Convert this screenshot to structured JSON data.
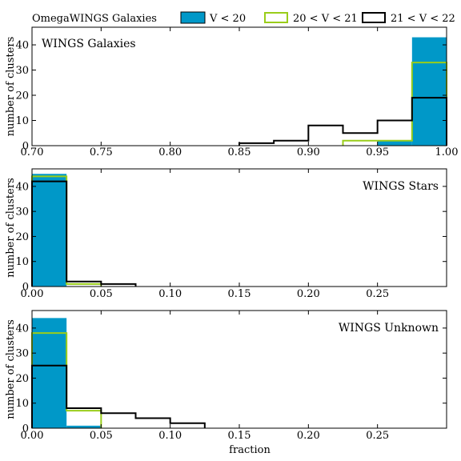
{
  "figure_title": "OmegaWINGS Galaxies",
  "legend": {
    "placement": "top",
    "entries": [
      {
        "label": "V < 20",
        "color": "#0098c8",
        "style": "filled"
      },
      {
        "label": "20 < V < 21",
        "color": "#9acd1a",
        "style": "step"
      },
      {
        "label": "21 < V < 22",
        "color": "#000000",
        "style": "step"
      }
    ]
  },
  "chart_data": [
    {
      "type": "bar",
      "panel_label": "WINGS Galaxies",
      "xlabel": "",
      "ylabel": "number of clusters",
      "xlim": [
        0.7,
        1.0
      ],
      "ylim": [
        0,
        47
      ],
      "xticks": [
        "0.70",
        "0.75",
        "0.80",
        "0.85",
        "0.90",
        "0.95",
        "1.00"
      ],
      "xtick_values": [
        0.7,
        0.75,
        0.8,
        0.85,
        0.9,
        0.95,
        1.0
      ],
      "yticks": [
        0,
        10,
        20,
        30,
        40
      ],
      "series": [
        {
          "name": "V < 20",
          "bins": [
            [
              0.95,
              0.975,
              2
            ],
            [
              0.975,
              1.0,
              43
            ]
          ]
        },
        {
          "name": "20 < V < 21",
          "bins": [
            [
              0.925,
              0.95,
              2
            ],
            [
              0.95,
              0.975,
              2
            ],
            [
              0.975,
              1.0,
              33
            ]
          ]
        },
        {
          "name": "21 < V < 22",
          "bins": [
            [
              0.85,
              0.875,
              1
            ],
            [
              0.875,
              0.9,
              2
            ],
            [
              0.9,
              0.925,
              8
            ],
            [
              0.925,
              0.95,
              5
            ],
            [
              0.95,
              0.975,
              10
            ],
            [
              0.975,
              1.0,
              19
            ]
          ]
        }
      ]
    },
    {
      "type": "bar",
      "panel_label": "WINGS Stars",
      "xlabel": "",
      "ylabel": "number of clusters",
      "xlim": [
        0.0,
        0.3
      ],
      "ylim": [
        0,
        47
      ],
      "xticks": [
        "0.00",
        "0.05",
        "0.10",
        "0.15",
        "0.20",
        "0.25"
      ],
      "xtick_values": [
        0.0,
        0.05,
        0.1,
        0.15,
        0.2,
        0.25
      ],
      "yticks": [
        0,
        10,
        20,
        30,
        40
      ],
      "series": [
        {
          "name": "V < 20",
          "bins": [
            [
              0.0,
              0.025,
              45
            ]
          ]
        },
        {
          "name": "20 < V < 21",
          "bins": [
            [
              0.0,
              0.025,
              44
            ],
            [
              0.025,
              0.05,
              1
            ]
          ]
        },
        {
          "name": "21 < V < 22",
          "bins": [
            [
              0.0,
              0.025,
              42
            ],
            [
              0.025,
              0.05,
              2
            ],
            [
              0.05,
              0.075,
              1
            ]
          ]
        }
      ]
    },
    {
      "type": "bar",
      "panel_label": "WINGS Unknown",
      "xlabel": "fraction",
      "ylabel": "number of clusters",
      "xlim": [
        0.0,
        0.3
      ],
      "ylim": [
        0,
        47
      ],
      "xticks": [
        "0.00",
        "0.05",
        "0.10",
        "0.15",
        "0.20",
        "0.25"
      ],
      "xtick_values": [
        0.0,
        0.05,
        0.1,
        0.15,
        0.2,
        0.25
      ],
      "yticks": [
        0,
        10,
        20,
        30,
        40
      ],
      "series": [
        {
          "name": "V < 20",
          "bins": [
            [
              0.0,
              0.025,
              44
            ],
            [
              0.025,
              0.05,
              1
            ]
          ]
        },
        {
          "name": "20 < V < 21",
          "bins": [
            [
              0.0,
              0.025,
              38
            ],
            [
              0.025,
              0.05,
              7
            ]
          ]
        },
        {
          "name": "21 < V < 22",
          "bins": [
            [
              0.0,
              0.025,
              25
            ],
            [
              0.025,
              0.05,
              8
            ],
            [
              0.05,
              0.075,
              6
            ],
            [
              0.075,
              0.1,
              4
            ],
            [
              0.1,
              0.125,
              2
            ]
          ]
        }
      ]
    }
  ]
}
